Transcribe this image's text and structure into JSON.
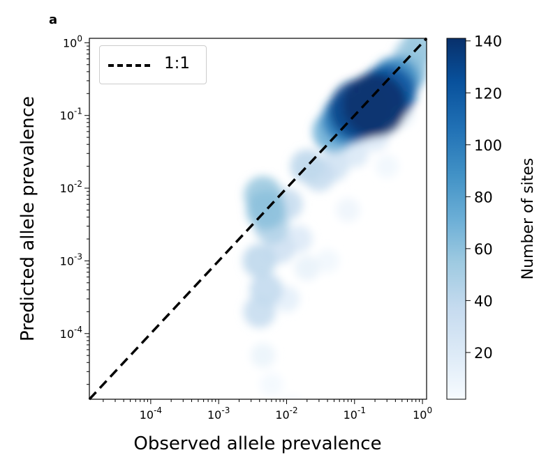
{
  "panel_label": "a",
  "legend": {
    "entry": "1:1"
  },
  "chart_data": {
    "type": "scatter",
    "title": "",
    "xlabel": "Observed allele prevalence",
    "ylabel": "Predicted allele prevalence",
    "x_scale": "log",
    "y_scale": "log",
    "xlim": [
      1.25e-05,
      1.15
    ],
    "ylim": [
      1.25e-05,
      1.15
    ],
    "x_ticks": [
      "10^-4",
      "10^-3",
      "10^-2",
      "10^-1",
      "10^0"
    ],
    "y_ticks": [
      "10^-4",
      "10^-3",
      "10^-2",
      "10^-1",
      "10^0"
    ],
    "reference_line": {
      "label": "1:1",
      "style": "dashed",
      "color": "#000000"
    },
    "colorbar": {
      "label": "Number of sites",
      "range": [
        2,
        141
      ],
      "ticks": [
        20,
        40,
        60,
        80,
        100,
        120,
        140
      ],
      "colormap": "Blues"
    },
    "legend_position": "top-left",
    "density_points": [
      {
        "x": 0.2,
        "y": 0.14,
        "density": 140
      },
      {
        "x": 0.12,
        "y": 0.12,
        "density": 130
      },
      {
        "x": 0.3,
        "y": 0.2,
        "density": 120
      },
      {
        "x": 0.08,
        "y": 0.09,
        "density": 100
      },
      {
        "x": 0.4,
        "y": 0.3,
        "density": 90
      },
      {
        "x": 0.05,
        "y": 0.06,
        "density": 70
      },
      {
        "x": 0.6,
        "y": 0.4,
        "density": 60
      },
      {
        "x": 1.0,
        "y": 1.0,
        "density": 55
      },
      {
        "x": 0.7,
        "y": 0.65,
        "density": 50
      },
      {
        "x": 0.02,
        "y": 0.02,
        "density": 40
      },
      {
        "x": 0.03,
        "y": 0.015,
        "density": 35
      },
      {
        "x": 0.005,
        "y": 0.005,
        "density": 60
      },
      {
        "x": 0.0045,
        "y": 0.008,
        "density": 55
      },
      {
        "x": 0.006,
        "y": 0.003,
        "density": 45
      },
      {
        "x": 0.004,
        "y": 0.001,
        "density": 40
      },
      {
        "x": 0.005,
        "y": 0.0004,
        "density": 38
      },
      {
        "x": 0.004,
        "y": 0.0002,
        "density": 35
      },
      {
        "x": 0.008,
        "y": 0.0015,
        "density": 30
      },
      {
        "x": 0.01,
        "y": 0.006,
        "density": 35
      },
      {
        "x": 0.05,
        "y": 0.02,
        "density": 28
      },
      {
        "x": 0.1,
        "y": 0.03,
        "density": 22
      },
      {
        "x": 0.2,
        "y": 0.05,
        "density": 20
      },
      {
        "x": 0.3,
        "y": 0.08,
        "density": 18
      },
      {
        "x": 0.015,
        "y": 0.002,
        "density": 20
      },
      {
        "x": 0.02,
        "y": 0.0008,
        "density": 12
      },
      {
        "x": 0.01,
        "y": 0.0003,
        "density": 15
      },
      {
        "x": 0.0045,
        "y": 5e-05,
        "density": 10
      },
      {
        "x": 0.006,
        "y": 2e-05,
        "density": 5
      },
      {
        "x": 0.04,
        "y": 0.001,
        "density": 6
      },
      {
        "x": 0.08,
        "y": 0.005,
        "density": 8
      },
      {
        "x": 0.3,
        "y": 0.02,
        "density": 6
      },
      {
        "x": 0.5,
        "y": 0.1,
        "density": 10
      },
      {
        "x": 0.012,
        "y": 1e-05,
        "density": 3
      }
    ]
  }
}
